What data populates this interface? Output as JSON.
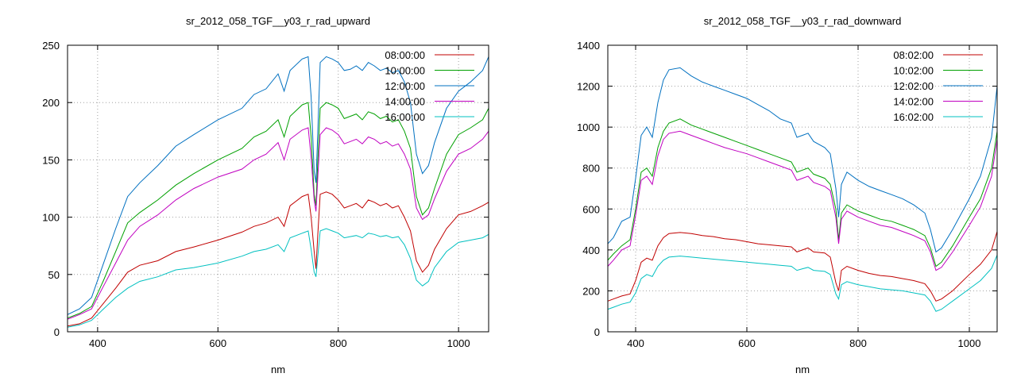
{
  "chart_data": [
    {
      "type": "line",
      "title": "sr_2012_058_TGF__y03_r_rad_upward",
      "xlabel": "nm",
      "ylabel": "",
      "xlim": [
        350,
        1050
      ],
      "ylim": [
        0,
        250
      ],
      "xticks": [
        400,
        600,
        800,
        1000
      ],
      "yticks": [
        0,
        50,
        100,
        150,
        200,
        250
      ],
      "grid": true,
      "legend_position": "top-right",
      "series": [
        {
          "name": "08:00:00",
          "color": "#c00000",
          "x": [
            350,
            370,
            390,
            410,
            430,
            450,
            470,
            500,
            530,
            560,
            600,
            640,
            660,
            680,
            700,
            710,
            720,
            740,
            750,
            755,
            760,
            763,
            766,
            770,
            780,
            790,
            800,
            810,
            820,
            830,
            840,
            850,
            860,
            870,
            880,
            890,
            900,
            910,
            920,
            930,
            940,
            950,
            960,
            980,
            1000,
            1020,
            1040,
            1050
          ],
          "y": [
            5,
            7,
            12,
            25,
            38,
            52,
            58,
            62,
            70,
            74,
            80,
            87,
            92,
            95,
            100,
            92,
            110,
            118,
            120,
            100,
            70,
            55,
            85,
            120,
            122,
            120,
            115,
            108,
            110,
            112,
            108,
            115,
            113,
            110,
            112,
            108,
            110,
            100,
            88,
            62,
            52,
            58,
            72,
            90,
            102,
            105,
            110,
            113
          ]
        },
        {
          "name": "10:00:00",
          "color": "#00a000",
          "x": [
            350,
            370,
            390,
            410,
            430,
            450,
            470,
            500,
            530,
            560,
            600,
            640,
            660,
            680,
            700,
            710,
            720,
            740,
            750,
            755,
            760,
            763,
            766,
            770,
            780,
            790,
            800,
            810,
            820,
            830,
            840,
            850,
            860,
            870,
            880,
            890,
            900,
            910,
            920,
            930,
            940,
            950,
            960,
            980,
            1000,
            1020,
            1040,
            1050
          ],
          "y": [
            12,
            16,
            22,
            45,
            70,
            95,
            104,
            115,
            128,
            138,
            150,
            160,
            170,
            175,
            185,
            170,
            188,
            198,
            200,
            170,
            120,
            110,
            150,
            195,
            200,
            198,
            195,
            186,
            188,
            190,
            185,
            192,
            190,
            186,
            188,
            183,
            185,
            175,
            160,
            118,
            102,
            108,
            125,
            155,
            172,
            178,
            185,
            195
          ]
        },
        {
          "name": "12:00:00",
          "color": "#0070c0",
          "x": [
            350,
            370,
            390,
            410,
            430,
            450,
            470,
            500,
            530,
            560,
            600,
            640,
            660,
            680,
            700,
            710,
            720,
            740,
            750,
            755,
            760,
            763,
            766,
            770,
            780,
            790,
            800,
            810,
            820,
            830,
            840,
            850,
            860,
            870,
            880,
            890,
            900,
            910,
            920,
            930,
            940,
            950,
            960,
            980,
            1000,
            1020,
            1040,
            1050
          ],
          "y": [
            15,
            20,
            30,
            60,
            90,
            118,
            130,
            145,
            162,
            172,
            185,
            195,
            207,
            212,
            225,
            210,
            228,
            238,
            240,
            205,
            140,
            130,
            175,
            235,
            240,
            238,
            235,
            228,
            229,
            232,
            228,
            235,
            232,
            228,
            230,
            226,
            228,
            218,
            200,
            155,
            138,
            145,
            165,
            195,
            210,
            218,
            228,
            240
          ]
        },
        {
          "name": "14:00:00",
          "color": "#c000c0",
          "x": [
            350,
            370,
            390,
            410,
            430,
            450,
            470,
            500,
            530,
            560,
            600,
            640,
            660,
            680,
            700,
            710,
            720,
            740,
            750,
            755,
            760,
            763,
            766,
            770,
            780,
            790,
            800,
            810,
            820,
            830,
            840,
            850,
            860,
            870,
            880,
            890,
            900,
            910,
            920,
            930,
            940,
            950,
            960,
            980,
            1000,
            1020,
            1040,
            1050
          ],
          "y": [
            11,
            15,
            20,
            40,
            60,
            80,
            92,
            102,
            115,
            125,
            135,
            142,
            150,
            155,
            165,
            150,
            168,
            176,
            178,
            152,
            115,
            105,
            135,
            172,
            178,
            176,
            172,
            164,
            166,
            168,
            164,
            170,
            168,
            164,
            166,
            162,
            164,
            155,
            142,
            108,
            98,
            102,
            116,
            140,
            155,
            160,
            168,
            175
          ]
        },
        {
          "name": "16:00:00",
          "color": "#00c0c0",
          "x": [
            350,
            370,
            390,
            410,
            430,
            450,
            470,
            500,
            530,
            560,
            600,
            640,
            660,
            680,
            700,
            710,
            720,
            740,
            750,
            755,
            760,
            763,
            766,
            770,
            780,
            790,
            800,
            810,
            820,
            830,
            840,
            850,
            860,
            870,
            880,
            890,
            900,
            910,
            920,
            930,
            940,
            950,
            960,
            980,
            1000,
            1020,
            1040,
            1050
          ],
          "y": [
            4,
            6,
            10,
            20,
            30,
            38,
            44,
            48,
            54,
            56,
            60,
            66,
            70,
            72,
            76,
            70,
            82,
            86,
            88,
            72,
            52,
            48,
            66,
            88,
            90,
            88,
            86,
            82,
            83,
            84,
            82,
            86,
            85,
            83,
            84,
            82,
            83,
            76,
            64,
            45,
            40,
            44,
            56,
            70,
            78,
            80,
            82,
            85
          ]
        }
      ]
    },
    {
      "type": "line",
      "title": "sr_2012_058_TGF__y03_r_rad_downward",
      "xlabel": "nm",
      "ylabel": "",
      "xlim": [
        350,
        1050
      ],
      "ylim": [
        0,
        1400
      ],
      "xticks": [
        400,
        600,
        800,
        1000
      ],
      "yticks": [
        0,
        200,
        400,
        600,
        800,
        1000,
        1200,
        1400
      ],
      "grid": true,
      "legend_position": "top-right",
      "series": [
        {
          "name": "08:02:00",
          "color": "#c00000",
          "x": [
            350,
            360,
            375,
            390,
            400,
            410,
            420,
            430,
            440,
            450,
            460,
            480,
            500,
            520,
            540,
            560,
            580,
            600,
            620,
            640,
            660,
            680,
            690,
            700,
            710,
            720,
            740,
            750,
            760,
            765,
            770,
            780,
            800,
            820,
            840,
            860,
            880,
            900,
            920,
            930,
            940,
            950,
            970,
            1000,
            1020,
            1040,
            1050
          ],
          "y": [
            150,
            160,
            175,
            185,
            250,
            340,
            360,
            350,
            420,
            460,
            480,
            485,
            480,
            470,
            465,
            455,
            450,
            440,
            430,
            425,
            420,
            415,
            390,
            400,
            410,
            390,
            385,
            365,
            240,
            200,
            300,
            320,
            300,
            285,
            275,
            270,
            260,
            250,
            235,
            200,
            150,
            160,
            200,
            280,
            330,
            400,
            490
          ]
        },
        {
          "name": "10:02:00",
          "color": "#00a000",
          "x": [
            350,
            360,
            375,
            390,
            400,
            410,
            420,
            430,
            440,
            450,
            460,
            480,
            500,
            520,
            540,
            560,
            580,
            600,
            620,
            640,
            660,
            680,
            690,
            700,
            710,
            720,
            740,
            750,
            760,
            765,
            770,
            780,
            800,
            820,
            840,
            860,
            880,
            900,
            920,
            930,
            940,
            950,
            970,
            1000,
            1020,
            1040,
            1050
          ],
          "y": [
            350,
            380,
            420,
            450,
            600,
            780,
            800,
            760,
            900,
            980,
            1020,
            1040,
            1010,
            990,
            970,
            950,
            930,
            910,
            890,
            870,
            850,
            830,
            780,
            790,
            800,
            770,
            750,
            720,
            600,
            450,
            580,
            620,
            590,
            570,
            550,
            540,
            520,
            500,
            470,
            410,
            320,
            340,
            420,
            560,
            650,
            800,
            980
          ]
        },
        {
          "name": "12:02:00",
          "color": "#0070c0",
          "x": [
            350,
            360,
            375,
            390,
            400,
            410,
            420,
            430,
            440,
            450,
            460,
            480,
            500,
            520,
            540,
            560,
            580,
            600,
            620,
            640,
            660,
            680,
            690,
            700,
            710,
            720,
            740,
            750,
            760,
            765,
            770,
            780,
            800,
            820,
            840,
            860,
            880,
            900,
            920,
            930,
            940,
            950,
            970,
            1000,
            1020,
            1040,
            1050
          ],
          "y": [
            430,
            460,
            540,
            560,
            750,
            960,
            1000,
            950,
            1120,
            1230,
            1280,
            1290,
            1250,
            1220,
            1200,
            1180,
            1160,
            1140,
            1110,
            1080,
            1040,
            1020,
            950,
            960,
            970,
            930,
            900,
            870,
            700,
            560,
            720,
            780,
            740,
            710,
            690,
            670,
            650,
            620,
            580,
            500,
            390,
            410,
            500,
            650,
            760,
            950,
            1200
          ]
        },
        {
          "name": "14:02:00",
          "color": "#c000c0",
          "x": [
            350,
            360,
            375,
            390,
            400,
            410,
            420,
            430,
            440,
            450,
            460,
            480,
            500,
            520,
            540,
            560,
            580,
            600,
            620,
            640,
            660,
            680,
            690,
            700,
            710,
            720,
            740,
            750,
            760,
            765,
            770,
            780,
            800,
            820,
            840,
            860,
            880,
            900,
            920,
            930,
            940,
            950,
            970,
            1000,
            1020,
            1040,
            1050
          ],
          "y": [
            320,
            350,
            400,
            420,
            570,
            740,
            760,
            720,
            860,
            940,
            970,
            980,
            960,
            940,
            920,
            900,
            885,
            870,
            850,
            830,
            810,
            790,
            740,
            750,
            760,
            730,
            710,
            690,
            560,
            430,
            550,
            590,
            560,
            540,
            520,
            510,
            490,
            470,
            445,
            390,
            300,
            315,
            390,
            520,
            610,
            760,
            940
          ]
        },
        {
          "name": "16:02:00",
          "color": "#00c0c0",
          "x": [
            350,
            360,
            375,
            390,
            400,
            410,
            420,
            430,
            440,
            450,
            460,
            480,
            500,
            520,
            540,
            560,
            580,
            600,
            620,
            640,
            660,
            680,
            690,
            700,
            710,
            720,
            740,
            750,
            760,
            765,
            770,
            780,
            800,
            820,
            840,
            860,
            880,
            900,
            920,
            930,
            940,
            950,
            970,
            1000,
            1020,
            1040,
            1050
          ],
          "y": [
            110,
            120,
            135,
            145,
            190,
            260,
            280,
            270,
            320,
            350,
            365,
            370,
            365,
            360,
            355,
            350,
            345,
            340,
            335,
            330,
            325,
            320,
            300,
            308,
            315,
            300,
            295,
            280,
            185,
            160,
            230,
            245,
            230,
            220,
            210,
            205,
            200,
            190,
            180,
            150,
            100,
            110,
            150,
            210,
            250,
            310,
            375
          ]
        }
      ]
    }
  ]
}
